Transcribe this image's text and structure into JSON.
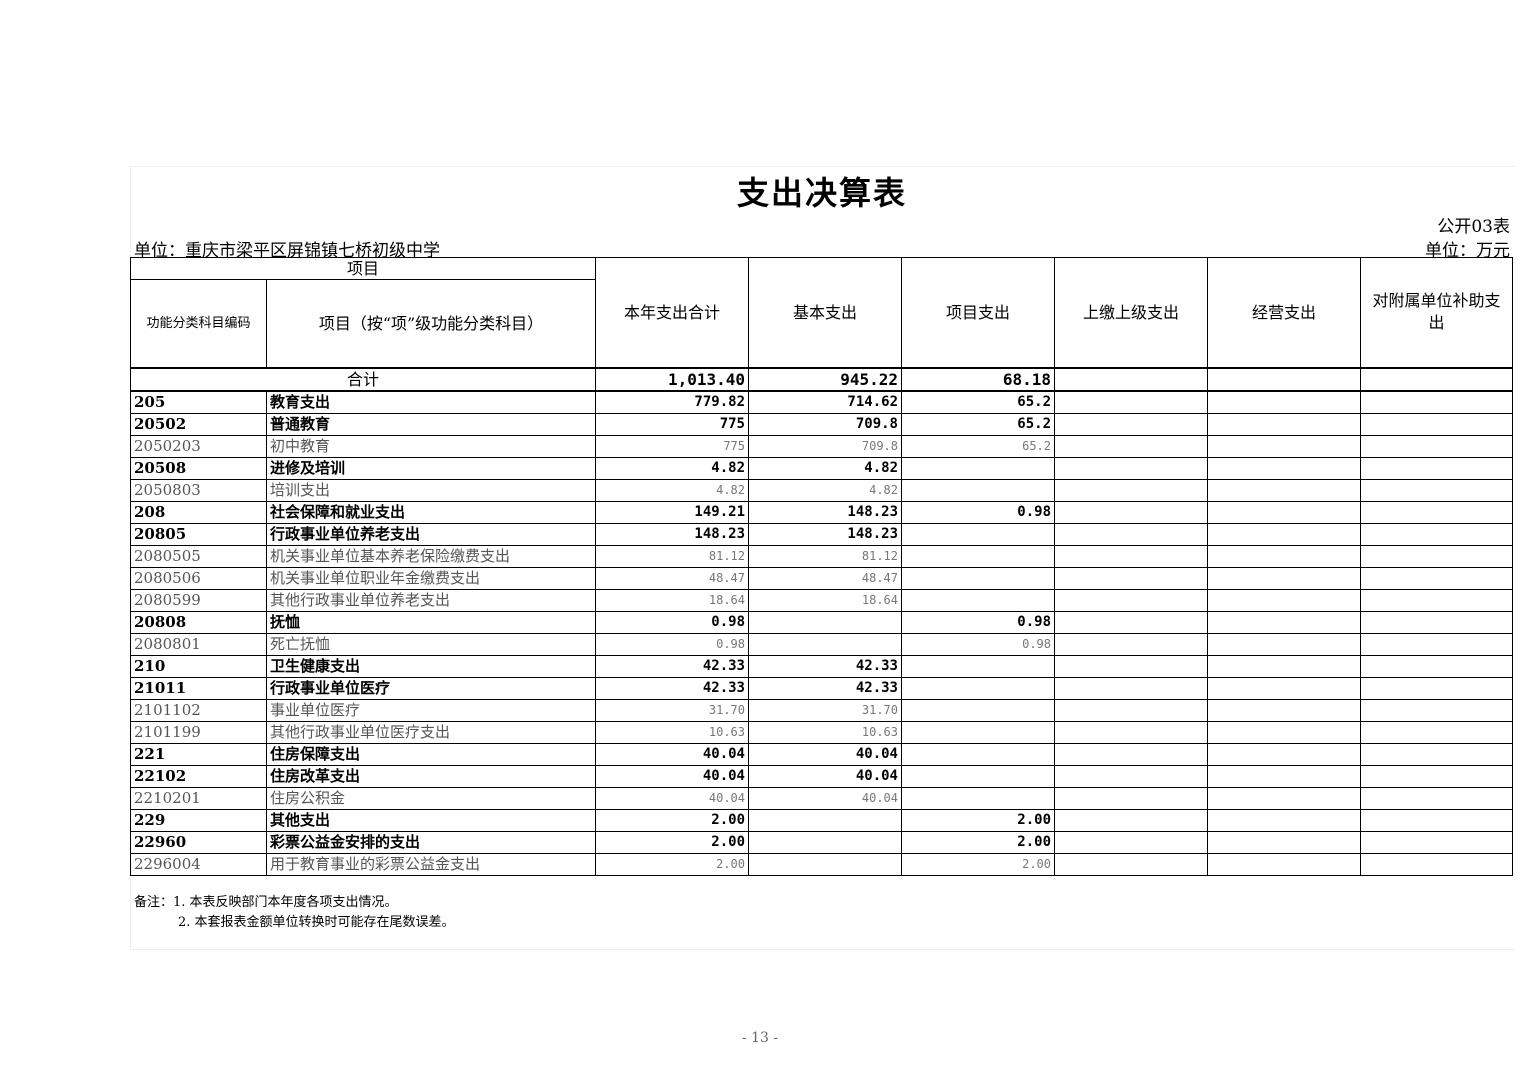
{
  "title": "支出决算表",
  "form_number": "公开03表",
  "unit_name": "单位：重庆市梁平区屏锦镇七桥初级中学",
  "currency_unit": "单位：万元",
  "header": {
    "group": "项目",
    "code": "功能分类科目编码",
    "item": "项目（按“项”级功能分类科目）",
    "total": "本年支出合计",
    "basic": "基本支出",
    "project": "项目支出",
    "upper": "上缴上级支出",
    "business": "经营支出",
    "subsidiary": "对附属单位补助支出"
  },
  "total_row": {
    "label": "合计",
    "total": "1,013.40",
    "basic": "945.22",
    "project": "68.18",
    "upper": "",
    "business": "",
    "subsidiary": ""
  },
  "rows": [
    {
      "code": "205",
      "name": "教育支出",
      "total": "779.82",
      "basic": "714.62",
      "project": "65.2",
      "level": 1
    },
    {
      "code": "20502",
      "name": "普通教育",
      "total": "775",
      "basic": "709.8",
      "project": "65.2",
      "level": 2
    },
    {
      "code": "2050203",
      "name": "初中教育",
      "total": "775",
      "basic": "709.8",
      "project": "65.2",
      "level": 3
    },
    {
      "code": "20508",
      "name": "进修及培训",
      "total": "4.82",
      "basic": "4.82",
      "project": "",
      "level": 2
    },
    {
      "code": "2050803",
      "name": "培训支出",
      "total": "4.82",
      "basic": "4.82",
      "project": "",
      "level": 3
    },
    {
      "code": "208",
      "name": "社会保障和就业支出",
      "total": "149.21",
      "basic": "148.23",
      "project": "0.98",
      "level": 1
    },
    {
      "code": "20805",
      "name": "行政事业单位养老支出",
      "total": "148.23",
      "basic": "148.23",
      "project": "",
      "level": 2
    },
    {
      "code": "2080505",
      "name": "机关事业单位基本养老保险缴费支出",
      "total": "81.12",
      "basic": "81.12",
      "project": "",
      "level": 3
    },
    {
      "code": "2080506",
      "name": "机关事业单位职业年金缴费支出",
      "total": "48.47",
      "basic": "48.47",
      "project": "",
      "level": 3
    },
    {
      "code": "2080599",
      "name": "其他行政事业单位养老支出",
      "total": "18.64",
      "basic": "18.64",
      "project": "",
      "level": 3
    },
    {
      "code": "20808",
      "name": "抚恤",
      "total": "0.98",
      "basic": "",
      "project": "0.98",
      "level": 2
    },
    {
      "code": "2080801",
      "name": "死亡抚恤",
      "total": "0.98",
      "basic": "",
      "project": "0.98",
      "level": 3
    },
    {
      "code": "210",
      "name": "卫生健康支出",
      "total": "42.33",
      "basic": "42.33",
      "project": "",
      "level": 1
    },
    {
      "code": "21011",
      "name": "行政事业单位医疗",
      "total": "42.33",
      "basic": "42.33",
      "project": "",
      "level": 2
    },
    {
      "code": "2101102",
      "name": "事业单位医疗",
      "total": "31.70",
      "basic": "31.70",
      "project": "",
      "level": 3
    },
    {
      "code": "2101199",
      "name": "其他行政事业单位医疗支出",
      "total": "10.63",
      "basic": "10.63",
      "project": "",
      "level": 3
    },
    {
      "code": "221",
      "name": "住房保障支出",
      "total": "40.04",
      "basic": "40.04",
      "project": "",
      "level": 1
    },
    {
      "code": "22102",
      "name": "住房改革支出",
      "total": "40.04",
      "basic": "40.04",
      "project": "",
      "level": 2
    },
    {
      "code": "2210201",
      "name": "住房公积金",
      "total": "40.04",
      "basic": "40.04",
      "project": "",
      "level": 3
    },
    {
      "code": "229",
      "name": "其他支出",
      "total": "2.00",
      "basic": "",
      "project": "2.00",
      "level": 1
    },
    {
      "code": "22960",
      "name": "彩票公益金安排的支出",
      "total": "2.00",
      "basic": "",
      "project": "2.00",
      "level": 2
    },
    {
      "code": "2296004",
      "name": "用于教育事业的彩票公益金支出",
      "total": "2.00",
      "basic": "",
      "project": "2.00",
      "level": 3
    }
  ],
  "notes": [
    "备注：1. 本表反映部门本年度各项支出情况。",
    "2. 本套报表金额单位转换时可能存在尾数误差。"
  ],
  "page_number": "- 13 -"
}
